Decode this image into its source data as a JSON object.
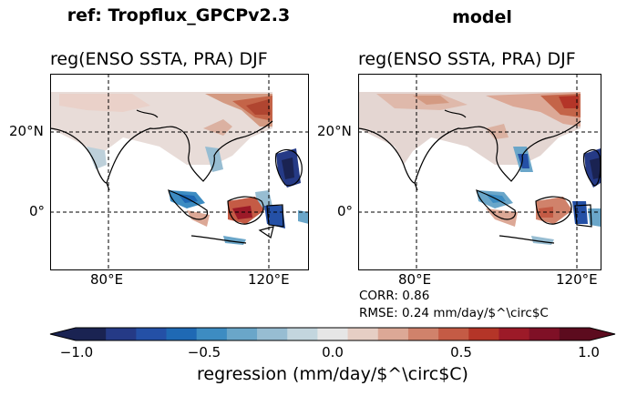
{
  "figure": {
    "left_panel": {
      "suptitle": "ref: Tropflux_GPCPv2.3",
      "title": "reg(ENSO SSTA, PRA) DJF",
      "lat_labels": [
        "20°N",
        "0°"
      ],
      "lon_labels": [
        "80°E",
        "120°E"
      ]
    },
    "right_panel": {
      "suptitle": "model",
      "title": "reg(ENSO SSTA, PRA) DJF",
      "lat_labels": [
        "20°N",
        "0°"
      ],
      "lon_labels": [
        "80°E",
        "120°E"
      ],
      "corr_text": "CORR: 0.86",
      "rmse_text": "RMSE: 0.24 mm/day/$^\\circ$C"
    },
    "colorbar": {
      "ticks": [
        "−1.0",
        "−0.5",
        "0.0",
        "0.5",
        "1.0"
      ],
      "label": "regression (mm/day/$^\\circ$C)",
      "colors": [
        "#1a2352",
        "#253a86",
        "#2450a6",
        "#1f69b4",
        "#3d8cc2",
        "#6aa6c9",
        "#97bdd2",
        "#c3d6de",
        "#e6e6e6",
        "#e6cec4",
        "#dca896",
        "#d0826b",
        "#c45b45",
        "#b43528",
        "#9c1a28",
        "#7f1026",
        "#5c0b1e"
      ]
    }
  }
}
